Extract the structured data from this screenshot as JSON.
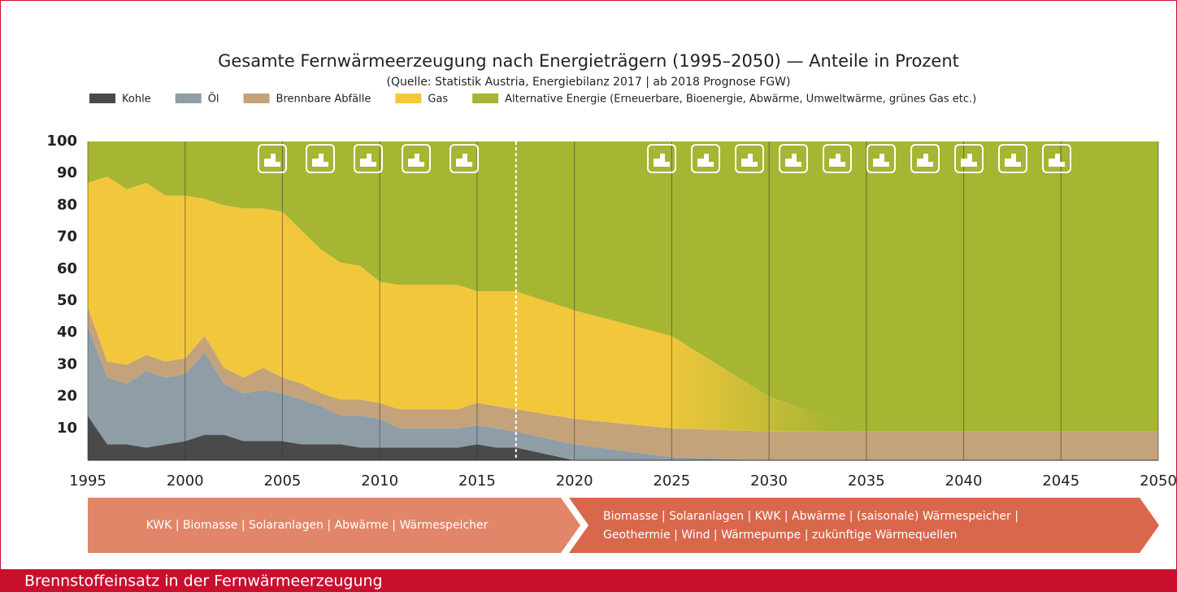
{
  "chart_data": {
    "type": "stacked_area",
    "title": "Gesamte Fernwärmeerzeugung nach Energieträgern (1995–2050) — Anteile in Prozent",
    "subtitle": "(Quelle: Statistik Austria, Energiebilanz 2017 | ab 2018 Prognose FGW)",
    "x": [
      1995,
      1996,
      1997,
      1998,
      1999,
      2000,
      2001,
      2002,
      2003,
      2004,
      2005,
      2006,
      2007,
      2008,
      2009,
      2010,
      2011,
      2012,
      2013,
      2014,
      2015,
      2016,
      2017,
      2020,
      2025,
      2030,
      2035,
      2040,
      2045,
      2050
    ],
    "series": [
      {
        "name": "Kohle",
        "color": "#4a4a4a",
        "values": [
          14,
          5,
          5,
          4,
          5,
          6,
          8,
          8,
          6,
          6,
          6,
          5,
          5,
          5,
          4,
          4,
          4,
          4,
          4,
          4,
          5,
          4,
          4,
          0,
          0,
          0,
          0,
          0,
          0,
          0
        ]
      },
      {
        "name": "Öl",
        "color": "#8f9ea6",
        "values": [
          28,
          21,
          19,
          24,
          21,
          21,
          26,
          16,
          15,
          16,
          15,
          14,
          12,
          9,
          10,
          9,
          6,
          6,
          6,
          6,
          6,
          6,
          5,
          5,
          1,
          0,
          0,
          0,
          0,
          0
        ]
      },
      {
        "name": "Brennbare Abfälle",
        "color": "#c4a37a",
        "values": [
          6,
          5,
          6,
          5,
          5,
          5,
          5,
          5,
          5,
          7,
          5,
          5,
          4,
          5,
          5,
          5,
          6,
          6,
          6,
          6,
          7,
          7,
          7,
          8,
          9,
          9,
          9,
          9,
          9,
          9
        ]
      },
      {
        "name": "Gas",
        "color": "#f2c73c",
        "values": [
          39,
          58,
          55,
          54,
          52,
          51,
          43,
          51,
          53,
          50,
          52,
          48,
          45,
          43,
          42,
          38,
          39,
          39,
          39,
          39,
          35,
          36,
          37,
          34,
          29,
          11,
          0,
          0,
          0,
          0
        ]
      },
      {
        "name": "Alternative Energie (Erneuerbare, Bioenergie, Abwärme, Umweltwärme, grünes Gas etc.)",
        "color": "#a6b532",
        "values": [
          13,
          11,
          15,
          13,
          17,
          17,
          18,
          20,
          21,
          21,
          22,
          28,
          34,
          38,
          39,
          44,
          45,
          45,
          45,
          45,
          47,
          47,
          47,
          53,
          61,
          80,
          91,
          91,
          91,
          91
        ]
      }
    ],
    "xlim": [
      1995,
      2050
    ],
    "xticks": [
      1995,
      2000,
      2005,
      2010,
      2015,
      2020,
      2025,
      2030,
      2035,
      2040,
      2045,
      2050
    ],
    "ylim": [
      0,
      100
    ],
    "yticks": [
      10,
      20,
      30,
      40,
      50,
      60,
      70,
      80,
      90,
      100
    ],
    "xgrid": true,
    "forecast_start": 2017,
    "phases": [
      "KWK | Biomasse | Solaranlagen | Abwärme | Wärmespeicher",
      "Biomasse | Solaranlagen | KWK | Abwärme | (saisonale) Wärmespeicher |",
      "Geothermie | Wind | Wärmepumpe | zukünftige Wärmequellen"
    ],
    "caption": "Brennstoffeinsatz in der Fernwärmeerzeugung"
  }
}
